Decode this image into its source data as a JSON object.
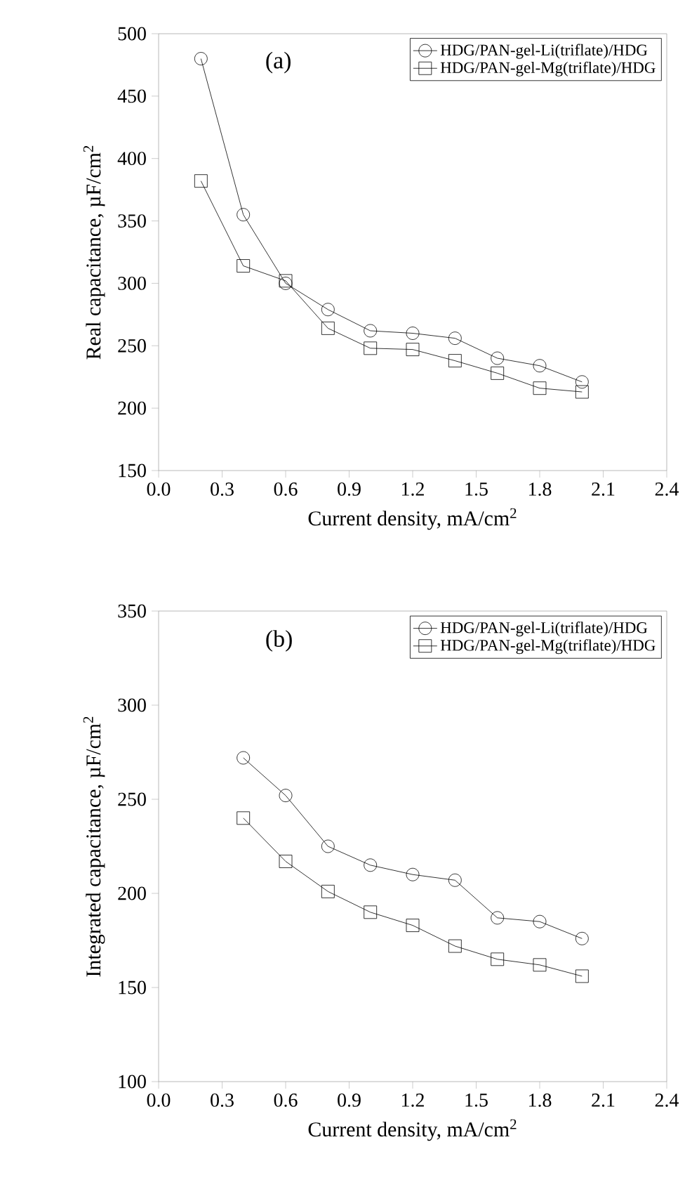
{
  "chart_data": [
    {
      "type": "line",
      "xlabel": "Current density, mA/cm$^{2}$",
      "ylabel": "Real capacitance, µF/cm$^{2}$",
      "annotations": [
        "(a)"
      ],
      "x": [
        0.2,
        0.4,
        0.6,
        0.8,
        1.0,
        1.2,
        1.4,
        1.6,
        1.8,
        2.0
      ],
      "series": [
        {
          "name": "HDG/PAN-gel-Li(triflate)/HDG",
          "color": "#000000",
          "marker": "circle",
          "values": [
            480,
            355,
            300,
            279,
            262,
            260,
            256,
            240,
            234,
            221
          ]
        },
        {
          "name": "HDG/PAN-gel-Mg(triflate)/HDG",
          "color": "#000000",
          "marker": "square",
          "values": [
            382,
            314,
            302,
            264,
            248,
            247,
            238,
            228,
            216,
            213
          ]
        }
      ],
      "xlim": [
        0,
        2.4
      ],
      "ylim": [
        150,
        500
      ],
      "xticks": [
        {
          "value": 0,
          "label": "0.0"
        },
        0.3,
        0.6,
        0.9,
        1.2,
        1.5,
        1.8,
        2.1,
        2.4
      ],
      "yticks": [
        150,
        200,
        250,
        300,
        350,
        400,
        450,
        500
      ],
      "legend": "top right",
      "grid": false,
      "line_style": "solid"
    },
    {
      "type": "line",
      "xlabel": "Current density, mA/cm$^{2}$",
      "ylabel": "Integrated capacitance, µF/cm$^{2}$",
      "annotations": [
        "(b)"
      ],
      "x": [
        0.4,
        0.6,
        0.8,
        1.0,
        1.2,
        1.4,
        1.6,
        1.8,
        2.0
      ],
      "series": [
        {
          "name": "HDG/PAN-gel-Li(triflate)/HDG",
          "color": "#000000",
          "marker": "circle",
          "values": [
            272,
            252,
            225,
            215,
            210,
            207,
            187,
            185,
            176
          ]
        },
        {
          "name": "HDG/PAN-gel-Mg(triflate)/HDG",
          "color": "#000000",
          "marker": "square",
          "values": [
            240,
            217,
            201,
            190,
            183,
            172,
            165,
            162,
            156
          ]
        }
      ],
      "xlim": [
        0,
        2.4
      ],
      "ylim": [
        100,
        350
      ],
      "xticks": [
        {
          "value": 0,
          "label": "0.0"
        },
        0.3,
        0.6,
        0.9,
        1.2,
        1.5,
        1.8,
        2.1,
        2.4
      ],
      "yticks": [
        100,
        150,
        200,
        250,
        300,
        350
      ],
      "legend": "top right",
      "grid": false,
      "line_style": "solid"
    }
  ]
}
